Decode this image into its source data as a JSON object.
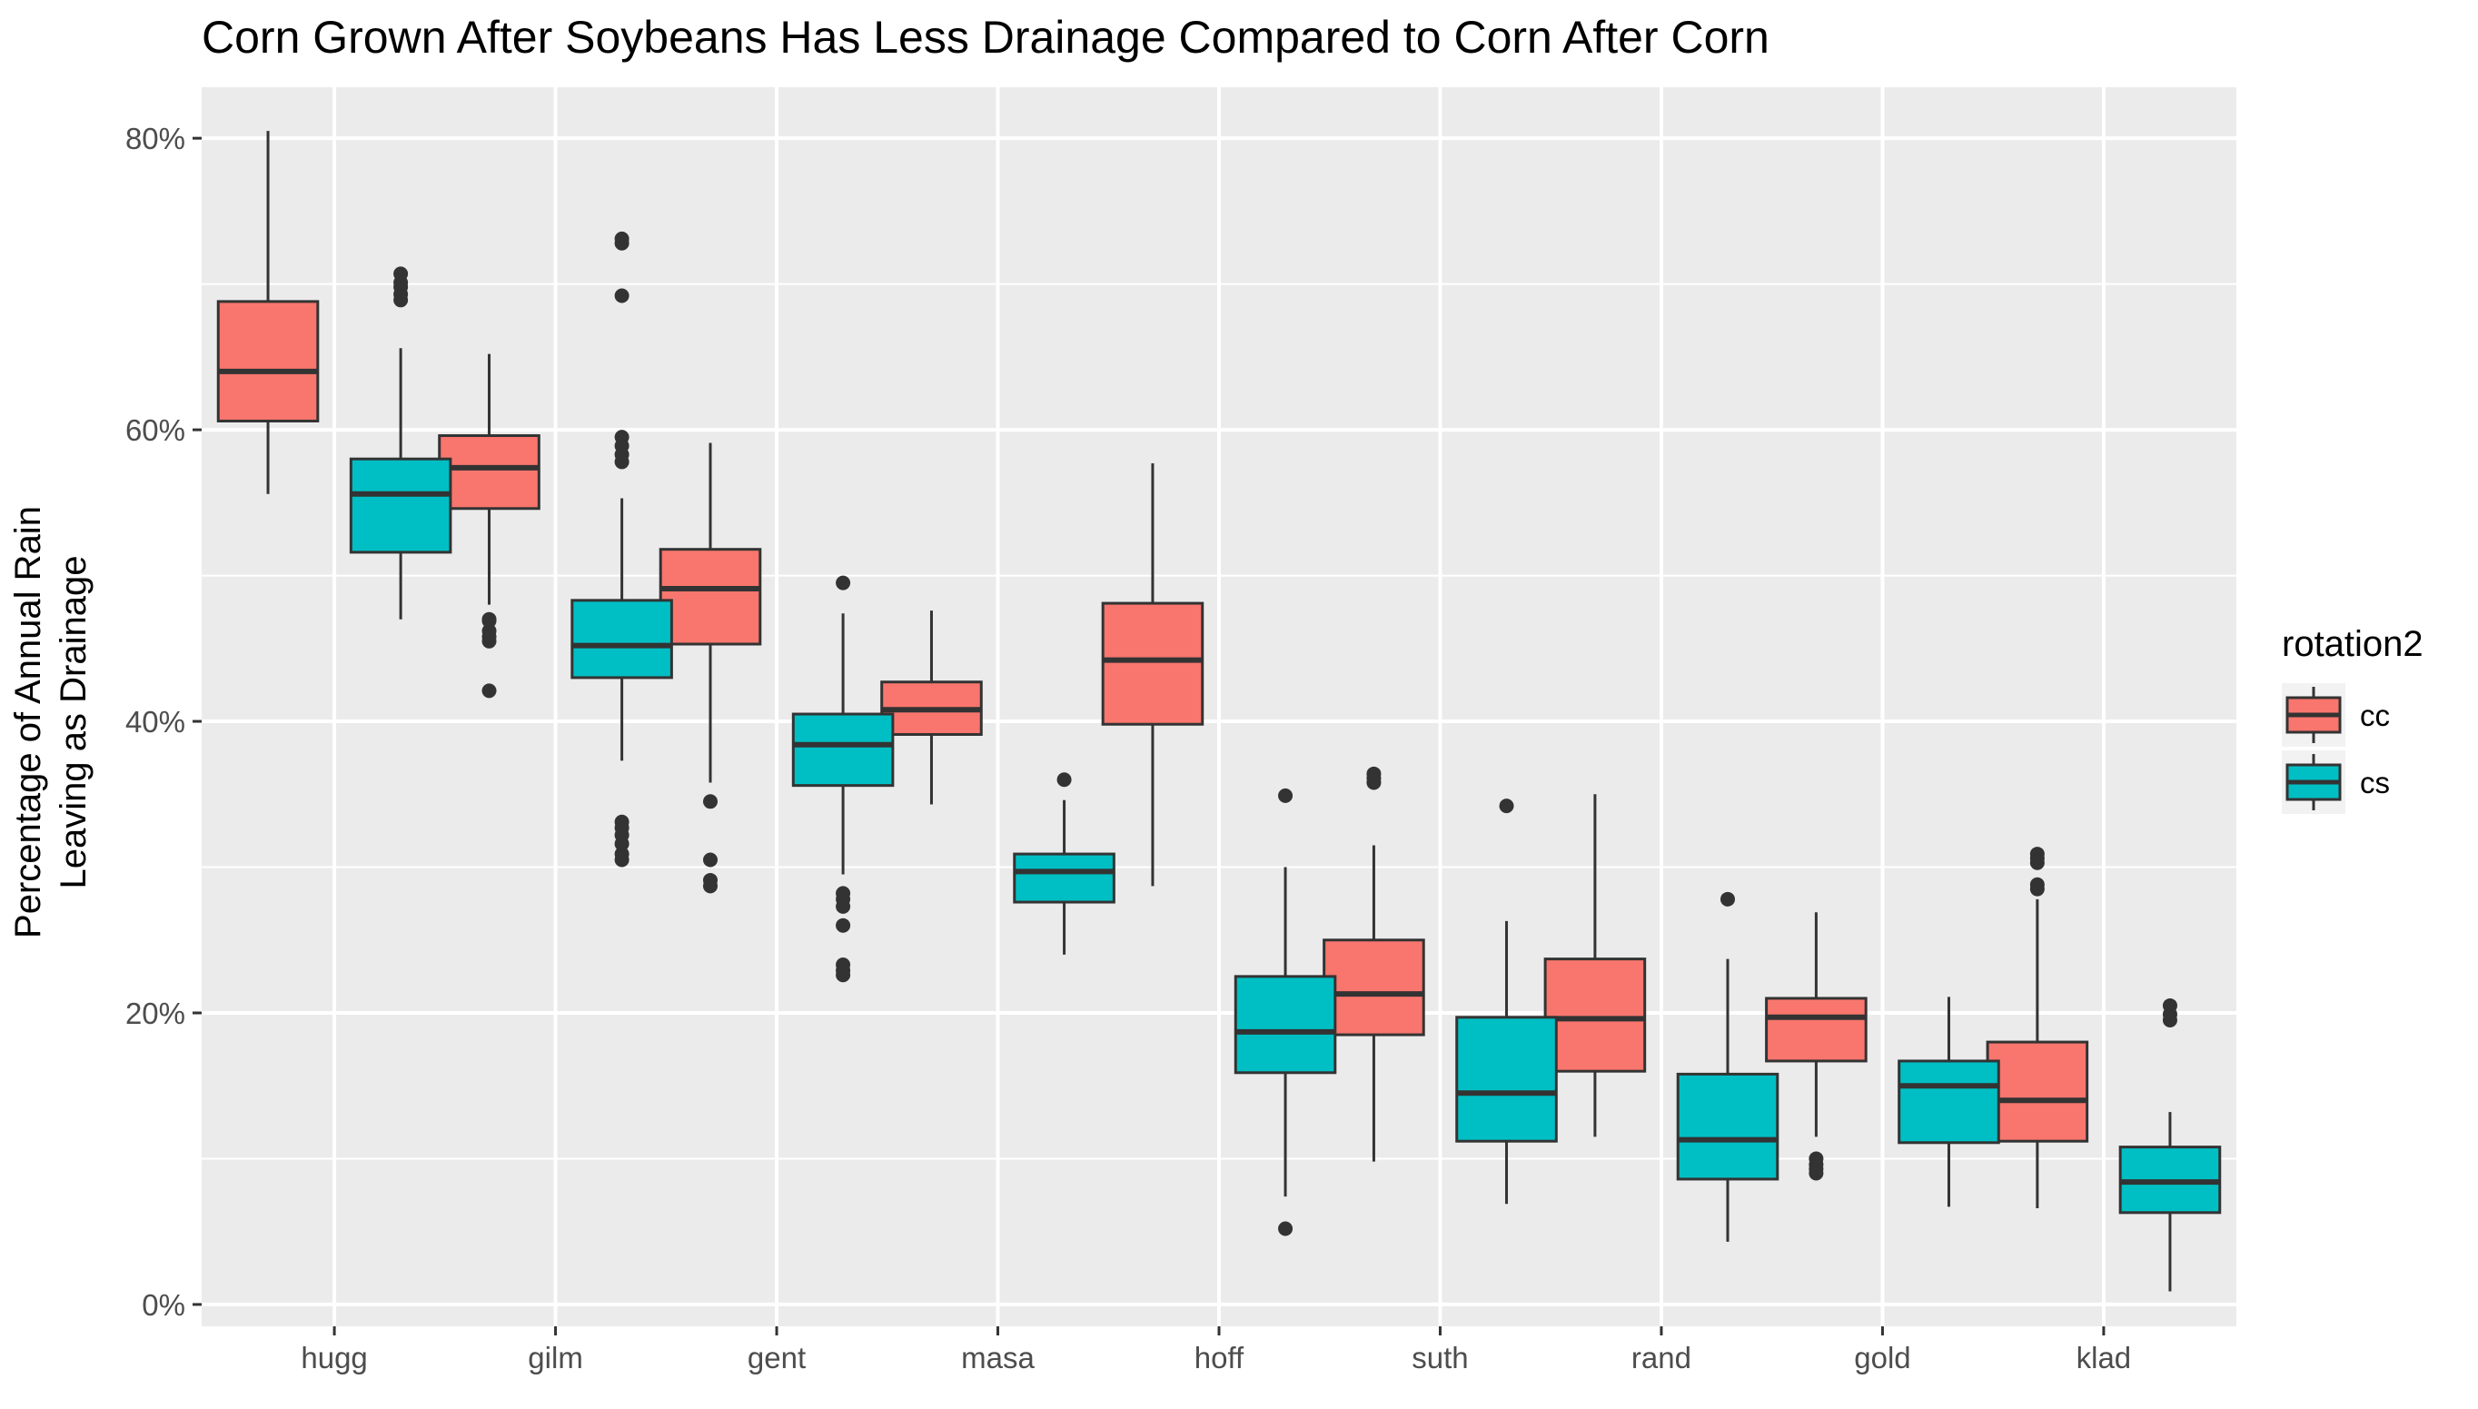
{
  "chart_data": {
    "type": "box",
    "title": "Corn Grown After Soybeans Has Less Drainage Compared to Corn After Corn",
    "xlabel": "",
    "ylabel_lines": [
      "Percentage of Annual Rain",
      "Leaving as Drainage"
    ],
    "ylim": [
      -0.015,
      0.835
    ],
    "y_ticks": [
      {
        "value": 0.0,
        "label": "0%"
      },
      {
        "value": 0.2,
        "label": "20%"
      },
      {
        "value": 0.4,
        "label": "40%"
      },
      {
        "value": 0.6,
        "label": "60%"
      },
      {
        "value": 0.8,
        "label": "80%"
      }
    ],
    "y_minor_ticks": [
      0.1,
      0.3,
      0.5,
      0.7
    ],
    "grid": true,
    "background": "#EBEBEB",
    "categories": [
      "hugg",
      "gilm",
      "gent",
      "masa",
      "hoff",
      "suth",
      "rand",
      "gold",
      "klad"
    ],
    "legend": {
      "title": "rotation2",
      "placement": "right",
      "entries": [
        {
          "key": "cc",
          "label": "cc",
          "color": "#F8766D"
        },
        {
          "key": "cs",
          "label": "cs",
          "color": "#00BFC4"
        }
      ]
    },
    "series": [
      {
        "key": "cc",
        "color": "#F8766D",
        "boxes": [
          {
            "category": "hugg",
            "whisker_low": 0.556,
            "q1": 0.606,
            "median": 0.64,
            "q3": 0.688,
            "whisker_high": 0.805,
            "outliers": []
          },
          {
            "category": "gilm",
            "whisker_low": 0.48,
            "q1": 0.546,
            "median": 0.574,
            "q3": 0.596,
            "whisker_high": 0.652,
            "outliers": [
              0.421,
              0.455,
              0.458,
              0.462,
              0.469,
              0.47
            ]
          },
          {
            "category": "gent",
            "whisker_low": 0.358,
            "q1": 0.453,
            "median": 0.491,
            "q3": 0.518,
            "whisker_high": 0.591,
            "outliers": [
              0.287,
              0.291,
              0.305,
              0.345
            ]
          },
          {
            "category": "masa",
            "whisker_low": 0.343,
            "q1": 0.391,
            "median": 0.408,
            "q3": 0.427,
            "whisker_high": 0.476,
            "outliers": []
          },
          {
            "category": "hoff",
            "whisker_low": 0.287,
            "q1": 0.398,
            "median": 0.442,
            "q3": 0.481,
            "whisker_high": 0.577,
            "outliers": []
          },
          {
            "category": "suth",
            "whisker_low": 0.098,
            "q1": 0.185,
            "median": 0.213,
            "q3": 0.25,
            "whisker_high": 0.315,
            "outliers": [
              0.358,
              0.361,
              0.364
            ]
          },
          {
            "category": "rand",
            "whisker_low": 0.115,
            "q1": 0.16,
            "median": 0.196,
            "q3": 0.237,
            "whisker_high": 0.35,
            "outliers": []
          },
          {
            "category": "gold",
            "whisker_low": 0.115,
            "q1": 0.167,
            "median": 0.197,
            "q3": 0.21,
            "whisker_high": 0.269,
            "outliers": [
              0.09,
              0.093,
              0.096,
              0.1
            ]
          },
          {
            "category": "klad",
            "whisker_low": 0.066,
            "q1": 0.112,
            "median": 0.14,
            "q3": 0.18,
            "whisker_high": 0.278,
            "outliers": [
              0.285,
              0.288,
              0.303,
              0.306,
              0.309
            ]
          }
        ]
      },
      {
        "key": "cs",
        "color": "#00BFC4",
        "boxes": [
          {
            "category": "hugg",
            "whisker_low": 0.47,
            "q1": 0.516,
            "median": 0.556,
            "q3": 0.58,
            "whisker_high": 0.656,
            "outliers": [
              0.689,
              0.693,
              0.698,
              0.701,
              0.707
            ]
          },
          {
            "category": "gilm",
            "whisker_low": 0.373,
            "q1": 0.43,
            "median": 0.452,
            "q3": 0.483,
            "whisker_high": 0.553,
            "outliers": [
              0.305,
              0.309,
              0.316,
              0.322,
              0.327,
              0.331,
              0.578,
              0.583,
              0.589,
              0.595,
              0.728,
              0.731,
              0.692
            ]
          },
          {
            "category": "gent",
            "whisker_low": 0.295,
            "q1": 0.356,
            "median": 0.384,
            "q3": 0.405,
            "whisker_high": 0.474,
            "outliers": [
              0.226,
              0.229,
              0.233,
              0.26,
              0.273,
              0.278,
              0.282,
              0.495
            ]
          },
          {
            "category": "masa",
            "whisker_low": 0.24,
            "q1": 0.276,
            "median": 0.297,
            "q3": 0.309,
            "whisker_high": 0.346,
            "outliers": [
              0.36
            ]
          },
          {
            "category": "hoff",
            "whisker_low": 0.074,
            "q1": 0.159,
            "median": 0.187,
            "q3": 0.225,
            "whisker_high": 0.3,
            "outliers": [
              0.052,
              0.349
            ]
          },
          {
            "category": "suth",
            "whisker_low": 0.069,
            "q1": 0.112,
            "median": 0.145,
            "q3": 0.197,
            "whisker_high": 0.263,
            "outliers": [
              0.342
            ]
          },
          {
            "category": "rand",
            "whisker_low": 0.043,
            "q1": 0.086,
            "median": 0.113,
            "q3": 0.158,
            "whisker_high": 0.237,
            "outliers": [
              0.278
            ]
          },
          {
            "category": "gold",
            "whisker_low": 0.067,
            "q1": 0.111,
            "median": 0.15,
            "q3": 0.167,
            "whisker_high": 0.211,
            "outliers": []
          },
          {
            "category": "klad",
            "whisker_low": 0.009,
            "q1": 0.063,
            "median": 0.084,
            "q3": 0.108,
            "whisker_high": 0.132,
            "outliers": [
              0.195,
              0.199,
              0.205
            ]
          }
        ]
      }
    ]
  }
}
